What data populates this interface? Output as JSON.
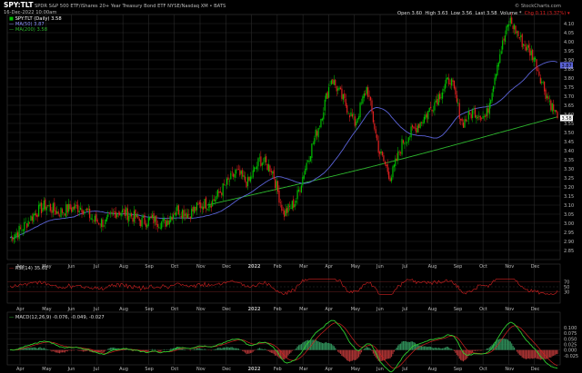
{
  "header": {
    "symbol": "SPY:TLT",
    "description": "SPDR S&P 500 ETF/iShares 20+ Year Treasury Bond ETF NYSE/Nasdaq XM • BATS",
    "date": "16-Dec-2022 10:00am",
    "watermark": "© StockCharts.com",
    "quote": {
      "open": "Open 3.60",
      "high": "High 3.63",
      "low": "Low 3.56",
      "last": "Last 3.58",
      "volume": "Volume *",
      "chg": "Chg 0.11 (3.37%) ▾"
    }
  },
  "legend": {
    "main_series": "SPY:TLT (Daily) 3.58",
    "ma50": "MA(50) 3.87",
    "ma200": "MA(200) 3.58"
  },
  "rsi_label": "RSI(14) 35.61",
  "macd_label": "MACD(12,26,9) -0.076, -0.049, -0.027",
  "colors": {
    "up": "#00c000",
    "down": "#e02020",
    "ma50": "#5b63d8",
    "ma200": "#2eb82e",
    "rsi": "#d02020",
    "macd": "#2ecc2e",
    "signal": "#d02020",
    "hist": "#2e8b57",
    "grid": "#2a2a2a",
    "price_tag": "#ffffff"
  },
  "chart_data": [
    {
      "type": "candlestick",
      "title": "SPY:TLT (Daily)",
      "x_months": [
        "Apr",
        "May",
        "Jun",
        "Jul",
        "Aug",
        "Sep",
        "Oct",
        "Nov",
        "Dec",
        "2022",
        "Feb",
        "Mar",
        "Apr",
        "May",
        "Jun",
        "Jul",
        "Aug",
        "Sep",
        "Oct",
        "Nov",
        "Dec"
      ],
      "ylim": [
        2.8,
        4.15
      ],
      "y_ticks": [
        "2.85",
        "2.90",
        "2.95",
        "3.00",
        "3.05",
        "3.10",
        "3.15",
        "3.20",
        "3.25",
        "3.30",
        "3.35",
        "3.40",
        "3.45",
        "3.50",
        "3.55",
        "3.60",
        "3.65",
        "3.70",
        "3.75",
        "3.80",
        "3.85",
        "3.90",
        "3.95",
        "4.00",
        "4.05",
        "4.10"
      ],
      "closes": [
        2.92,
        2.97,
        3.05,
        3.1,
        3.06,
        3.08,
        3.09,
        3.02,
        3.0,
        3.07,
        3.05,
        3.01,
        3.02,
        3.0,
        3.08,
        3.05,
        3.1,
        3.12,
        3.2,
        3.28,
        3.22,
        3.35,
        3.3,
        3.05,
        3.12,
        3.35,
        3.55,
        3.8,
        3.68,
        3.55,
        3.75,
        3.4,
        3.25,
        3.45,
        3.52,
        3.6,
        3.7,
        3.8,
        3.55,
        3.62,
        3.58,
        3.9,
        4.12,
        4.0,
        3.92,
        3.72,
        3.58
      ],
      "ma50_last": 3.87,
      "ma200_last": 3.58,
      "last": 3.58
    },
    {
      "type": "line",
      "title": "RSI(14)",
      "ylim": [
        0,
        100
      ],
      "y_ticks": [
        "70",
        "50",
        "30"
      ],
      "last": 35.61
    },
    {
      "type": "line",
      "title": "MACD(12,26,9)",
      "ylim": [
        -0.05,
        0.12
      ],
      "y_ticks": [
        "0.100",
        "0.075",
        "0.050",
        "0.025",
        "0.000",
        "-0.025"
      ],
      "macd": -0.076,
      "signal": -0.049,
      "histogram": -0.027
    }
  ]
}
